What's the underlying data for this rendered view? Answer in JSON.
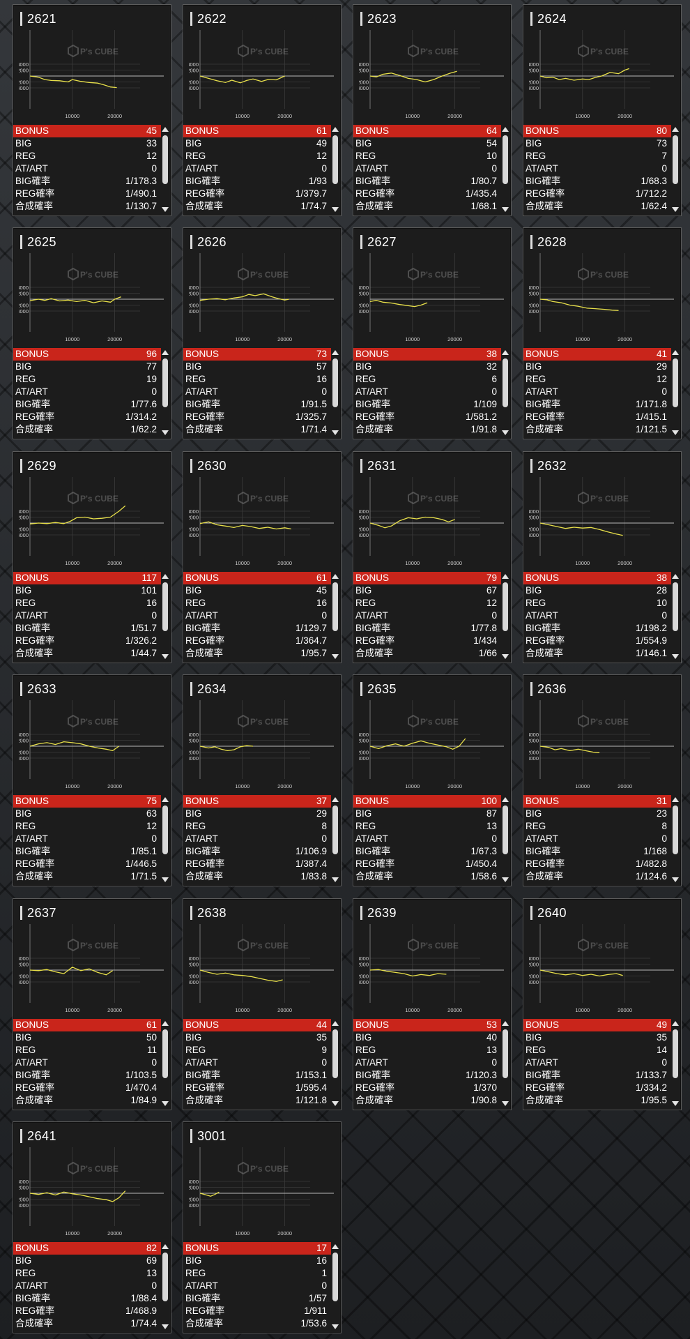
{
  "labels": {
    "bonus": "BONUS",
    "big": "BIG",
    "reg": "REG",
    "at": "AT/ART",
    "big_rate": "BIG確率",
    "reg_rate": "REG確率",
    "total_rate": "合成確率"
  },
  "chart_axis": {
    "y_ticks": [
      "4000",
      "2000",
      "-2000",
      "-4000"
    ],
    "x_ticks": [
      "10000",
      "20000"
    ],
    "watermark": "P's CUBE"
  },
  "colors": {
    "line": "#e8e04a",
    "bonus_bg": "#c9251b",
    "card_bg": "#1c1c1c"
  },
  "cards": [
    {
      "id": "2621",
      "bonus": "45",
      "big": "33",
      "reg": "12",
      "at": "0",
      "big_rate": "1/178.3",
      "reg_rate": "1/490.1",
      "total_rate": "1/130.7",
      "graph": [
        [
          0,
          0
        ],
        [
          2000,
          -400
        ],
        [
          3500,
          -1200
        ],
        [
          5000,
          -1500
        ],
        [
          7000,
          -1600
        ],
        [
          9000,
          -2000
        ],
        [
          10000,
          -1200
        ],
        [
          12000,
          -1800
        ],
        [
          14000,
          -2200
        ],
        [
          16000,
          -2400
        ],
        [
          17500,
          -3000
        ],
        [
          19000,
          -3700
        ],
        [
          20500,
          -3900
        ]
      ]
    },
    {
      "id": "2622",
      "bonus": "61",
      "big": "49",
      "reg": "12",
      "at": "0",
      "big_rate": "1/93",
      "reg_rate": "1/379.7",
      "total_rate": "1/74.7",
      "graph": [
        [
          0,
          0
        ],
        [
          2000,
          -800
        ],
        [
          4000,
          -1600
        ],
        [
          6000,
          -2200
        ],
        [
          7500,
          -1400
        ],
        [
          9500,
          -2300
        ],
        [
          11000,
          -1500
        ],
        [
          12500,
          -1000
        ],
        [
          14500,
          -1800
        ],
        [
          16000,
          -1200
        ],
        [
          18000,
          -1300
        ],
        [
          20000,
          0
        ]
      ]
    },
    {
      "id": "2623",
      "bonus": "64",
      "big": "54",
      "reg": "10",
      "at": "0",
      "big_rate": "1/80.7",
      "reg_rate": "1/435.4",
      "total_rate": "1/68.1",
      "graph": [
        [
          0,
          0
        ],
        [
          1500,
          -300
        ],
        [
          3000,
          600
        ],
        [
          5000,
          1000
        ],
        [
          7000,
          200
        ],
        [
          9000,
          -800
        ],
        [
          11000,
          -1200
        ],
        [
          13000,
          -2000
        ],
        [
          15000,
          -1200
        ],
        [
          17000,
          0
        ],
        [
          19000,
          1000
        ],
        [
          20500,
          1600
        ]
      ]
    },
    {
      "id": "2624",
      "bonus": "80",
      "big": "73",
      "reg": "7",
      "at": "0",
      "big_rate": "1/68.3",
      "reg_rate": "1/712.2",
      "total_rate": "1/62.4",
      "graph": [
        [
          0,
          0
        ],
        [
          1500,
          -600
        ],
        [
          3000,
          -400
        ],
        [
          4500,
          -1200
        ],
        [
          6000,
          -800
        ],
        [
          8000,
          -1400
        ],
        [
          10000,
          -1000
        ],
        [
          11500,
          -1200
        ],
        [
          13000,
          -500
        ],
        [
          14500,
          0
        ],
        [
          16500,
          1200
        ],
        [
          18500,
          800
        ],
        [
          20000,
          2000
        ],
        [
          21000,
          2500
        ]
      ]
    },
    {
      "id": "2625",
      "bonus": "96",
      "big": "77",
      "reg": "19",
      "at": "0",
      "big_rate": "1/77.6",
      "reg_rate": "1/314.2",
      "total_rate": "1/62.2",
      "graph": [
        [
          0,
          -500
        ],
        [
          2000,
          0
        ],
        [
          3500,
          -400
        ],
        [
          5000,
          200
        ],
        [
          7000,
          -600
        ],
        [
          9000,
          -300
        ],
        [
          11000,
          -800
        ],
        [
          13000,
          -400
        ],
        [
          15000,
          -1200
        ],
        [
          17000,
          -600
        ],
        [
          19000,
          -1000
        ],
        [
          20000,
          0
        ],
        [
          21500,
          800
        ]
      ]
    },
    {
      "id": "2626",
      "bonus": "73",
      "big": "57",
      "reg": "16",
      "at": "0",
      "big_rate": "1/91.5",
      "reg_rate": "1/325.7",
      "total_rate": "1/71.4",
      "graph": [
        [
          0,
          -400
        ],
        [
          2000,
          0
        ],
        [
          4000,
          200
        ],
        [
          6000,
          -200
        ],
        [
          8000,
          400
        ],
        [
          10000,
          800
        ],
        [
          11500,
          1600
        ],
        [
          13000,
          1200
        ],
        [
          15000,
          1800
        ],
        [
          17000,
          800
        ],
        [
          18500,
          200
        ],
        [
          20000,
          -300
        ],
        [
          21000,
          0
        ]
      ]
    },
    {
      "id": "2627",
      "bonus": "38",
      "big": "32",
      "reg": "6",
      "at": "0",
      "big_rate": "1/109",
      "reg_rate": "1/581.2",
      "total_rate": "1/91.8",
      "graph": [
        [
          0,
          -800
        ],
        [
          1500,
          -400
        ],
        [
          3000,
          -1000
        ],
        [
          5000,
          -1300
        ],
        [
          7000,
          -1800
        ],
        [
          9000,
          -2200
        ],
        [
          10500,
          -2500
        ],
        [
          12000,
          -2000
        ],
        [
          13500,
          -1200
        ]
      ]
    },
    {
      "id": "2628",
      "bonus": "41",
      "big": "29",
      "reg": "12",
      "at": "0",
      "big_rate": "1/171.8",
      "reg_rate": "1/415.1",
      "total_rate": "1/121.5",
      "graph": [
        [
          0,
          0
        ],
        [
          1500,
          -200
        ],
        [
          3000,
          -800
        ],
        [
          5000,
          -1200
        ],
        [
          7000,
          -2000
        ],
        [
          9000,
          -2400
        ],
        [
          11000,
          -3000
        ],
        [
          13000,
          -3200
        ],
        [
          15000,
          -3400
        ],
        [
          17000,
          -3700
        ],
        [
          18500,
          -3800
        ]
      ]
    },
    {
      "id": "2629",
      "bonus": "117",
      "big": "101",
      "reg": "16",
      "at": "0",
      "big_rate": "1/51.7",
      "reg_rate": "1/326.2",
      "total_rate": "1/44.7",
      "graph": [
        [
          0,
          -300
        ],
        [
          2000,
          0
        ],
        [
          4000,
          -200
        ],
        [
          6000,
          200
        ],
        [
          8000,
          -200
        ],
        [
          9500,
          600
        ],
        [
          11000,
          1800
        ],
        [
          13000,
          2000
        ],
        [
          15000,
          1400
        ],
        [
          17000,
          1600
        ],
        [
          19000,
          2000
        ],
        [
          21000,
          4000
        ],
        [
          22500,
          5800
        ]
      ]
    },
    {
      "id": "2630",
      "bonus": "61",
      "big": "45",
      "reg": "16",
      "at": "0",
      "big_rate": "1/129.7",
      "reg_rate": "1/364.7",
      "total_rate": "1/95.7",
      "graph": [
        [
          0,
          -200
        ],
        [
          2000,
          400
        ],
        [
          4000,
          -600
        ],
        [
          6000,
          -1000
        ],
        [
          8000,
          -1500
        ],
        [
          10000,
          -800
        ],
        [
          12000,
          -1200
        ],
        [
          14000,
          -1800
        ],
        [
          16000,
          -1400
        ],
        [
          18000,
          -2000
        ],
        [
          20000,
          -1600
        ],
        [
          21500,
          -2000
        ]
      ]
    },
    {
      "id": "2631",
      "bonus": "79",
      "big": "67",
      "reg": "12",
      "at": "0",
      "big_rate": "1/77.8",
      "reg_rate": "1/434",
      "total_rate": "1/66",
      "graph": [
        [
          0,
          0
        ],
        [
          2000,
          -800
        ],
        [
          3500,
          -1600
        ],
        [
          5000,
          -1000
        ],
        [
          7000,
          800
        ],
        [
          9000,
          1800
        ],
        [
          11000,
          1400
        ],
        [
          13000,
          2000
        ],
        [
          15000,
          1800
        ],
        [
          17000,
          1200
        ],
        [
          18500,
          400
        ],
        [
          20000,
          1200
        ]
      ]
    },
    {
      "id": "2632",
      "bonus": "38",
      "big": "28",
      "reg": "10",
      "at": "0",
      "big_rate": "1/198.2",
      "reg_rate": "1/554.9",
      "total_rate": "1/146.1",
      "graph": [
        [
          0,
          0
        ],
        [
          2000,
          -600
        ],
        [
          4000,
          -1200
        ],
        [
          6000,
          -1800
        ],
        [
          8000,
          -1400
        ],
        [
          10000,
          -1700
        ],
        [
          12000,
          -1500
        ],
        [
          14000,
          -2200
        ],
        [
          16000,
          -3000
        ],
        [
          18000,
          -3700
        ],
        [
          19500,
          -4200
        ]
      ]
    },
    {
      "id": "2633",
      "bonus": "75",
      "big": "63",
      "reg": "12",
      "at": "0",
      "big_rate": "1/85.1",
      "reg_rate": "1/446.5",
      "total_rate": "1/71.5",
      "graph": [
        [
          0,
          0
        ],
        [
          2000,
          800
        ],
        [
          4000,
          1200
        ],
        [
          6000,
          600
        ],
        [
          8000,
          1500
        ],
        [
          10000,
          1200
        ],
        [
          12000,
          800
        ],
        [
          14000,
          0
        ],
        [
          16000,
          -600
        ],
        [
          18000,
          -1000
        ],
        [
          19500,
          -1500
        ],
        [
          21000,
          0
        ]
      ]
    },
    {
      "id": "2634",
      "bonus": "37",
      "big": "29",
      "reg": "8",
      "at": "0",
      "big_rate": "1/106.9",
      "reg_rate": "1/387.4",
      "total_rate": "1/83.8",
      "graph": [
        [
          0,
          0
        ],
        [
          2000,
          -600
        ],
        [
          3500,
          -200
        ],
        [
          5000,
          -1000
        ],
        [
          6500,
          -1500
        ],
        [
          8000,
          -1200
        ],
        [
          9500,
          -200
        ],
        [
          11000,
          200
        ],
        [
          12500,
          0
        ]
      ]
    },
    {
      "id": "2635",
      "bonus": "100",
      "big": "87",
      "reg": "13",
      "at": "0",
      "big_rate": "1/67.3",
      "reg_rate": "1/450.4",
      "total_rate": "1/58.6",
      "graph": [
        [
          0,
          0
        ],
        [
          2000,
          -800
        ],
        [
          4000,
          200
        ],
        [
          6000,
          800
        ],
        [
          8000,
          0
        ],
        [
          10000,
          1000
        ],
        [
          12000,
          1800
        ],
        [
          14000,
          1000
        ],
        [
          16000,
          400
        ],
        [
          18000,
          -200
        ],
        [
          19500,
          -1000
        ],
        [
          21000,
          0
        ],
        [
          22500,
          2600
        ]
      ]
    },
    {
      "id": "2636",
      "bonus": "31",
      "big": "23",
      "reg": "8",
      "at": "0",
      "big_rate": "1/168",
      "reg_rate": "1/482.8",
      "total_rate": "1/124.6",
      "graph": [
        [
          0,
          0
        ],
        [
          2000,
          -400
        ],
        [
          3500,
          -1200
        ],
        [
          5000,
          -800
        ],
        [
          7000,
          -1500
        ],
        [
          9000,
          -1000
        ],
        [
          11000,
          -1600
        ],
        [
          12500,
          -2000
        ],
        [
          14000,
          -2200
        ]
      ]
    },
    {
      "id": "2637",
      "bonus": "61",
      "big": "50",
      "reg": "11",
      "at": "0",
      "big_rate": "1/103.5",
      "reg_rate": "1/470.4",
      "total_rate": "1/84.9",
      "graph": [
        [
          0,
          0
        ],
        [
          2000,
          -200
        ],
        [
          4000,
          200
        ],
        [
          6000,
          -600
        ],
        [
          8000,
          -1200
        ],
        [
          10000,
          1000
        ],
        [
          12000,
          -200
        ],
        [
          14000,
          400
        ],
        [
          16000,
          -800
        ],
        [
          18000,
          -1600
        ],
        [
          19500,
          -200
        ]
      ]
    },
    {
      "id": "2638",
      "bonus": "44",
      "big": "35",
      "reg": "9",
      "at": "0",
      "big_rate": "1/153.1",
      "reg_rate": "1/595.4",
      "total_rate": "1/121.8",
      "graph": [
        [
          0,
          0
        ],
        [
          2000,
          -800
        ],
        [
          4000,
          -1400
        ],
        [
          6000,
          -1000
        ],
        [
          8000,
          -1600
        ],
        [
          10000,
          -1800
        ],
        [
          12000,
          -2200
        ],
        [
          14000,
          -2800
        ],
        [
          16000,
          -3400
        ],
        [
          18000,
          -3800
        ],
        [
          19500,
          -3300
        ]
      ]
    },
    {
      "id": "2639",
      "bonus": "53",
      "big": "40",
      "reg": "13",
      "at": "0",
      "big_rate": "1/120.3",
      "reg_rate": "1/370",
      "total_rate": "1/90.8",
      "graph": [
        [
          0,
          0
        ],
        [
          2000,
          200
        ],
        [
          4000,
          -400
        ],
        [
          6000,
          -800
        ],
        [
          8000,
          -1200
        ],
        [
          10000,
          -2000
        ],
        [
          12000,
          -1500
        ],
        [
          14000,
          -1800
        ],
        [
          16000,
          -1200
        ],
        [
          18000,
          -1400
        ]
      ]
    },
    {
      "id": "2640",
      "bonus": "49",
      "big": "35",
      "reg": "14",
      "at": "0",
      "big_rate": "1/133.7",
      "reg_rate": "1/334.2",
      "total_rate": "1/95.5",
      "graph": [
        [
          0,
          0
        ],
        [
          2000,
          -600
        ],
        [
          4000,
          -1200
        ],
        [
          6000,
          -1600
        ],
        [
          8000,
          -1200
        ],
        [
          10000,
          -1800
        ],
        [
          12000,
          -1400
        ],
        [
          14000,
          -2000
        ],
        [
          16000,
          -1500
        ],
        [
          18000,
          -1200
        ],
        [
          19500,
          -1800
        ]
      ]
    },
    {
      "id": "2641",
      "bonus": "82",
      "big": "69",
      "reg": "13",
      "at": "0",
      "big_rate": "1/88.4",
      "reg_rate": "1/468.9",
      "total_rate": "1/74.4",
      "graph": [
        [
          0,
          0
        ],
        [
          2000,
          -400
        ],
        [
          4000,
          200
        ],
        [
          6000,
          -600
        ],
        [
          8000,
          400
        ],
        [
          10000,
          -200
        ],
        [
          12000,
          -600
        ],
        [
          14000,
          -1200
        ],
        [
          16000,
          -1800
        ],
        [
          18000,
          -2200
        ],
        [
          19500,
          -2800
        ],
        [
          21000,
          -1500
        ],
        [
          22500,
          800
        ]
      ]
    },
    {
      "id": "3001",
      "bonus": "17",
      "big": "16",
      "reg": "1",
      "at": "0",
      "big_rate": "1/57",
      "reg_rate": "1/911",
      "total_rate": "1/53.6",
      "graph": [
        [
          0,
          0
        ],
        [
          1500,
          -600
        ],
        [
          2500,
          -1000
        ],
        [
          3500,
          -400
        ],
        [
          4500,
          400
        ]
      ]
    }
  ]
}
